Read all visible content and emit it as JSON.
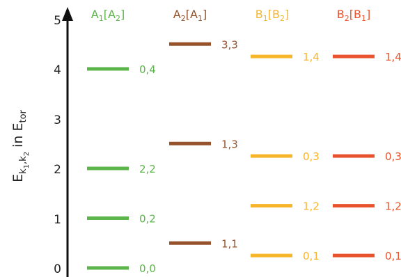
{
  "axis": {
    "title_main": "E",
    "title_sub1": "k",
    "title_sub1_idx": "1",
    "title_comma": ",",
    "title_sub2": "k",
    "title_sub2_idx": "2",
    "title_in": " in E",
    "title_unit_sub": "tor",
    "ticks": [
      "0",
      "1",
      "2",
      "3",
      "4",
      "5"
    ]
  },
  "columns": [
    {
      "id": "a1",
      "header": {
        "main": "A",
        "sub": "1",
        "bracket_open": "[A",
        "bracket_sub": "2",
        "bracket_close": "]"
      },
      "color": "#5cb54a",
      "levels": [
        {
          "energy": 0.0,
          "label": "0,0"
        },
        {
          "energy": 1.0,
          "label": "0,2"
        },
        {
          "energy": 2.0,
          "label": "2,2"
        },
        {
          "energy": 4.0,
          "label": "0,4"
        }
      ]
    },
    {
      "id": "a2",
      "header": {
        "main": "A",
        "sub": "2",
        "bracket_open": "[A",
        "bracket_sub": "1",
        "bracket_close": "]"
      },
      "color": "#96532b",
      "levels": [
        {
          "energy": 0.5,
          "label": "1,1"
        },
        {
          "energy": 2.5,
          "label": "1,3"
        },
        {
          "energy": 4.5,
          "label": "3,3"
        }
      ]
    },
    {
      "id": "b1",
      "header": {
        "main": "B",
        "sub": "1",
        "bracket_open": "[B",
        "bracket_sub": "2",
        "bracket_close": "]"
      },
      "color": "#f7b52a",
      "levels": [
        {
          "energy": 0.25,
          "label": "0,1"
        },
        {
          "energy": 1.25,
          "label": "1,2"
        },
        {
          "energy": 2.25,
          "label": "0,3"
        },
        {
          "energy": 4.25,
          "label": "1,4"
        }
      ]
    },
    {
      "id": "b2",
      "header": {
        "main": "B",
        "sub": "2",
        "bracket_open": "[B",
        "bracket_sub": "1",
        "bracket_close": "]"
      },
      "color": "#e8532e",
      "levels": [
        {
          "energy": 0.25,
          "label": "0,1"
        },
        {
          "energy": 1.25,
          "label": "1,2"
        },
        {
          "energy": 2.25,
          "label": "0,3"
        },
        {
          "energy": 4.25,
          "label": "1,4"
        }
      ]
    }
  ]
}
